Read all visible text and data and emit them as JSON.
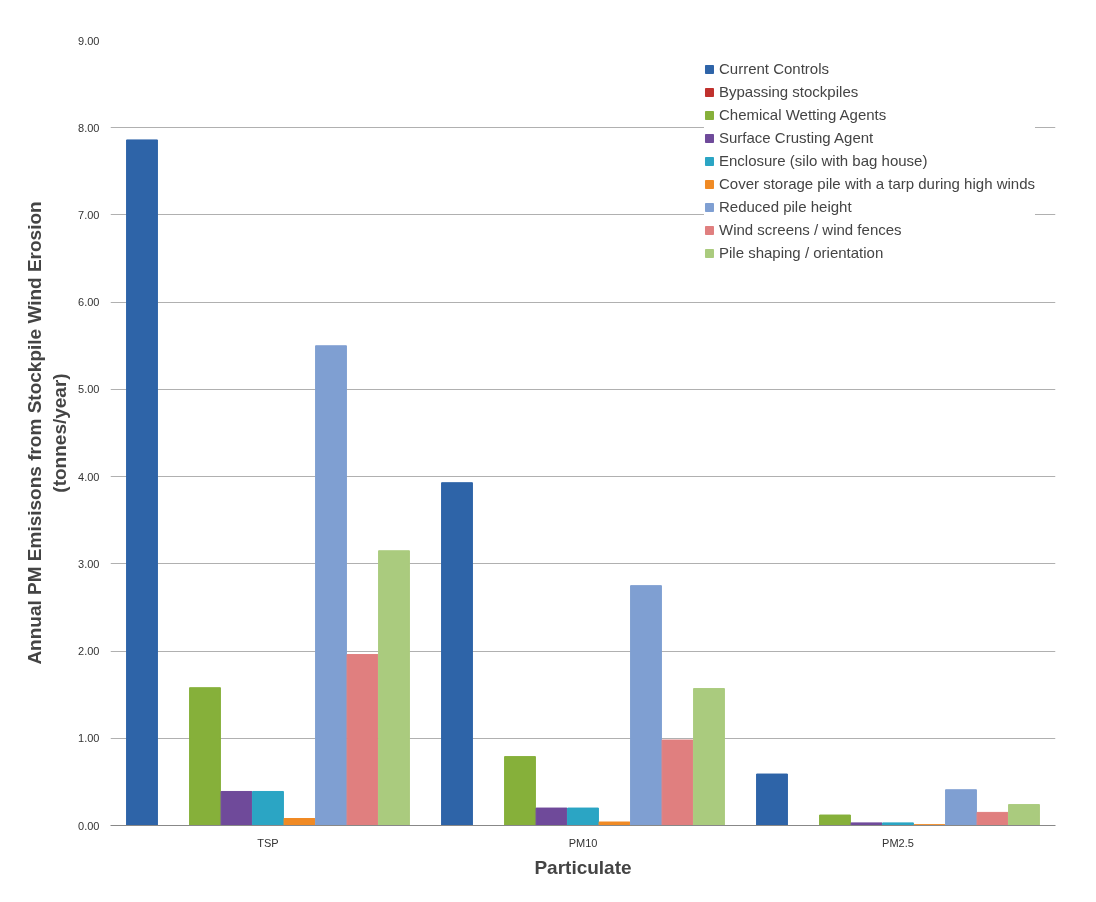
{
  "chart_data": {
    "type": "bar",
    "xlabel": "Particulate",
    "ylabel": "Annual PM Emisisons from Stockpile Wind Erosion\n(tonnes/year)",
    "categories": [
      "TSP",
      "PM10",
      "PM2.5"
    ],
    "series": [
      {
        "name": "Current Controls",
        "color": "#2e64a8",
        "values": [
          7.86,
          3.93,
          0.59
        ]
      },
      {
        "name": "Bypassing stockpiles",
        "color": "#c0312d",
        "values": [
          0,
          0,
          0
        ]
      },
      {
        "name": "Chemical Wetting Agents",
        "color": "#86b03a",
        "values": [
          1.58,
          0.79,
          0.12
        ]
      },
      {
        "name": "Surface Crusting Agent",
        "color": "#6f4a9a",
        "values": [
          0.39,
          0.2,
          0.03
        ]
      },
      {
        "name": "Enclosure (silo with bag house)",
        "color": "#2ba5c4",
        "values": [
          0.39,
          0.2,
          0.03
        ]
      },
      {
        "name": "Cover storage pile with a tarp during high winds",
        "color": "#f08a24",
        "values": [
          0.08,
          0.04,
          0.01
        ]
      },
      {
        "name": "Reduced pile height",
        "color": "#7f9fd2",
        "values": [
          5.5,
          2.75,
          0.41
        ]
      },
      {
        "name": "Wind screens / wind fences",
        "color": "#e07f7f",
        "values": [
          1.96,
          0.98,
          0.15
        ]
      },
      {
        "name": "Pile shaping / orientation",
        "color": "#aacb7e",
        "values": [
          3.15,
          1.57,
          0.24
        ]
      }
    ],
    "ylim": [
      0,
      9
    ],
    "yticks": [
      {
        "value": 0,
        "label": "0.00"
      },
      {
        "value": 1,
        "label": "1.00"
      },
      {
        "value": 2,
        "label": "2.00"
      },
      {
        "value": 3,
        "label": "3.00"
      },
      {
        "value": 4,
        "label": "4.00"
      },
      {
        "value": 5,
        "label": "5.00"
      },
      {
        "value": 6,
        "label": "6.00"
      },
      {
        "value": 7,
        "label": "7.00"
      },
      {
        "value": 8,
        "label": "8.00"
      },
      {
        "value": 9,
        "label": "9.00"
      }
    ],
    "grid": "y",
    "legend": "top right"
  }
}
